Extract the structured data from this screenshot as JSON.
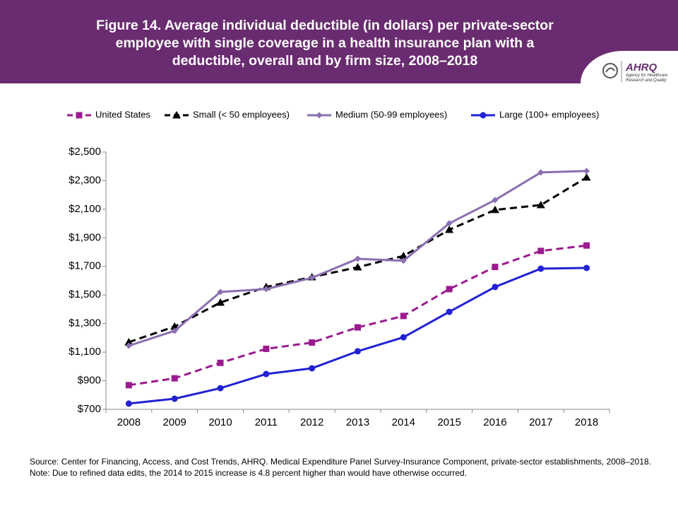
{
  "chart_data": {
    "type": "line",
    "title": "Figure 14. Average individual deductible (in dollars) per private-sector employee with single coverage in a health insurance plan with a deductible, overall and  by firm size, 2008–2018",
    "source": "Source: Center for Financing, Access, and Cost Trends, AHRQ. Medical Expenditure Panel Survey-Insurance Component, private-sector establishments, 2008–2018. Note: Due to refined data edits, the 2014 to 2015 increase is 4.8 percent higher than would have otherwise occurred.",
    "logo": {
      "name": "AHRQ",
      "tagline": "Agency for Healthcare Research and Quality"
    },
    "categories": [
      "2008",
      "2009",
      "2010",
      "2011",
      "2012",
      "2013",
      "2014",
      "2015",
      "2016",
      "2017",
      "2018"
    ],
    "series": [
      {
        "name": "United States",
        "color": "#9b1b8e",
        "dash": true,
        "marker": "square",
        "values": [
          869,
          917,
          1025,
          1123,
          1167,
          1273,
          1353,
          1541,
          1696,
          1808,
          1846
        ]
      },
      {
        "name": "Small (< 50 employees)",
        "color": "#000000",
        "dash": true,
        "marker": "triangle",
        "values": [
          1170,
          1279,
          1447,
          1556,
          1625,
          1694,
          1773,
          1956,
          2095,
          2129,
          2322
        ]
      },
      {
        "name": "Medium (50-99 employees)",
        "color": "#8a6fb0",
        "dash": false,
        "marker": "diamond",
        "values": [
          1145,
          1249,
          1521,
          1541,
          1620,
          1753,
          1739,
          2001,
          2164,
          2357,
          2367
        ]
      },
      {
        "name": "Large (100+ employees)",
        "color": "#2222d4",
        "dash": false,
        "marker": "circle",
        "values": [
          740,
          774,
          848,
          947,
          987,
          1106,
          1204,
          1382,
          1556,
          1684,
          1689
        ]
      }
    ],
    "ylim": [
      700,
      2500
    ],
    "yticks": [
      {
        "value": 700,
        "label": "$700"
      },
      {
        "value": 900,
        "label": "$900"
      },
      {
        "value": 1100,
        "label": "$1,100"
      },
      {
        "value": 1300,
        "label": "$1,300"
      },
      {
        "value": 1500,
        "label": "$1,500"
      },
      {
        "value": 1700,
        "label": "$1,700"
      },
      {
        "value": 1900,
        "label": "$1,900"
      },
      {
        "value": 2100,
        "label": "$2,100"
      },
      {
        "value": 2300,
        "label": "$2,300"
      },
      {
        "value": 2500,
        "label": "$2,500"
      }
    ],
    "grid": false,
    "legend": "top"
  }
}
